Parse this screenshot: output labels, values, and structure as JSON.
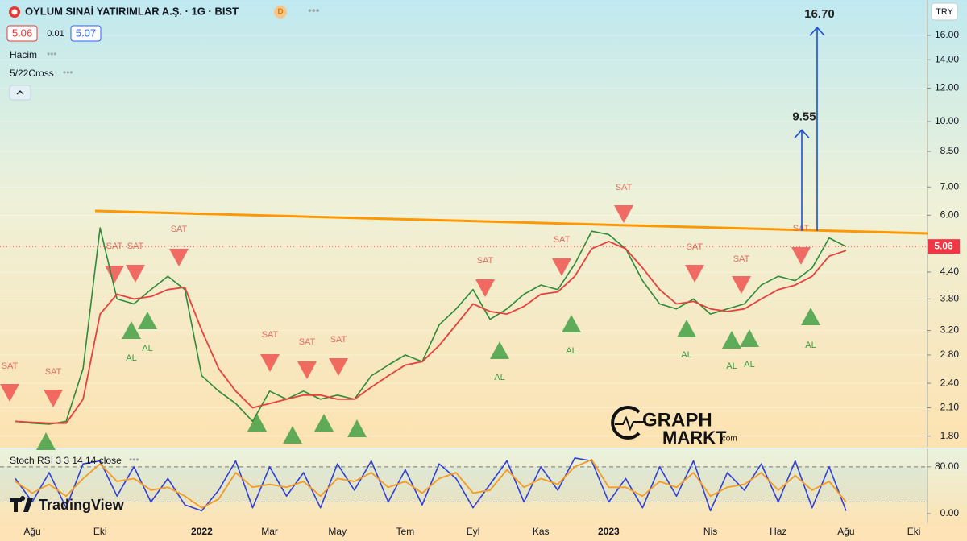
{
  "header": {
    "bid": 5.06,
    "change": 0.01,
    "ask": 5.07,
    "badge": "D",
    "indicators": [
      "Hacim",
      "5/22Cross"
    ],
    "currency": "TRY"
  },
  "watermark": {
    "brand": "TradingView",
    "line1": "GRAPH",
    "line2": "MARKT",
    "suffix": ".com"
  },
  "chart_data": [
    {
      "type": "line",
      "title": "OYLUM SINAİ YATIRIMLAR A.Ş. · 1G · BIST",
      "categories": [
        null,
        "Ağu",
        null,
        null,
        null,
        "Eki",
        null,
        null,
        null,
        null,
        null,
        "2022",
        null,
        null,
        null,
        "Mar",
        null,
        null,
        null,
        "May",
        null,
        null,
        null,
        "Tem",
        null,
        null,
        null,
        "Eyl",
        null,
        null,
        null,
        "Kas",
        null,
        null,
        null,
        "2023",
        null,
        null,
        null,
        null,
        null,
        "Nis",
        null,
        null,
        null,
        "Haz",
        null,
        null,
        null,
        "Ağu",
        null,
        null,
        null,
        "Eki"
      ],
      "series": [
        {
          "color": "#2e8b3a",
          "values": [
            1.95,
            1.93,
            1.92,
            1.95,
            2.6,
            5.6,
            3.8,
            3.7,
            4.0,
            4.3,
            4.0,
            2.5,
            2.3,
            2.15,
            1.95,
            2.3,
            2.2,
            2.3,
            2.2,
            2.25,
            2.2,
            2.5,
            2.65,
            2.8,
            2.7,
            3.3,
            3.6,
            4.0,
            3.4,
            3.6,
            3.9,
            4.1,
            4.0,
            4.6,
            5.5,
            5.4,
            5.0,
            4.2,
            3.7,
            3.6,
            3.8,
            3.5,
            3.6,
            3.7,
            4.1,
            4.3,
            4.2,
            4.5,
            5.3,
            5.06,
            null,
            null,
            null,
            null
          ]
        },
        {
          "color": "#e8413c",
          "values": [
            1.95,
            1.94,
            1.93,
            1.93,
            2.2,
            3.5,
            3.9,
            3.8,
            3.85,
            4.0,
            4.05,
            3.2,
            2.6,
            2.3,
            2.1,
            2.15,
            2.2,
            2.25,
            2.25,
            2.2,
            2.2,
            2.35,
            2.5,
            2.65,
            2.7,
            2.95,
            3.3,
            3.7,
            3.55,
            3.5,
            3.65,
            3.9,
            3.95,
            4.3,
            5.0,
            5.2,
            5.0,
            4.5,
            4.0,
            3.7,
            3.75,
            3.6,
            3.55,
            3.6,
            3.8,
            4.0,
            4.1,
            4.3,
            4.8,
            4.95,
            null,
            null,
            null,
            null
          ]
        }
      ],
      "log_scale": true,
      "ylim": [
        1.69,
        19.4
      ],
      "yticks": [
        {
          "value": 1.8,
          "label": "1.80"
        },
        {
          "value": 2.1,
          "label": "2.10"
        },
        {
          "value": 2.4,
          "label": "2.40"
        },
        {
          "value": 2.8,
          "label": "2.80"
        },
        {
          "value": 3.2,
          "label": "3.20"
        },
        {
          "value": 3.8,
          "label": "3.80"
        },
        {
          "value": 4.4,
          "label": "4.40"
        },
        {
          "value": 6,
          "label": "6.00"
        },
        {
          "value": 7,
          "label": "7.00"
        },
        {
          "value": 8.5,
          "label": "8.50"
        },
        {
          "value": 10,
          "label": "10.00"
        },
        {
          "value": 12,
          "label": "12.00"
        },
        {
          "value": 14,
          "label": "14.00"
        },
        {
          "value": 16,
          "label": "16.00"
        }
      ],
      "last_price": 5.06,
      "targets": [
        9.55,
        16.7
      ],
      "target_labels": [
        "9.55",
        "16.70"
      ],
      "sell_label": "SAT",
      "buy_label": "AL",
      "trendline_color": "#ff9800",
      "target_color": "#1f4fd6"
    },
    {
      "type": "line",
      "title": "Stoch RSI 3 3 14 14 close",
      "series": [
        {
          "color": "#2f3fdb",
          "values": [
            60,
            20,
            70,
            10,
            85,
            90,
            30,
            80,
            20,
            60,
            15,
            5,
            40,
            90,
            10,
            80,
            30,
            70,
            10,
            85,
            40,
            90,
            20,
            75,
            15,
            85,
            60,
            10,
            50,
            90,
            20,
            80,
            40,
            95,
            90,
            20,
            60,
            10,
            80,
            30,
            90,
            5,
            70,
            40,
            85,
            20,
            90,
            10,
            80,
            5,
            null,
            null,
            null,
            null
          ]
        },
        {
          "color": "#f59a23",
          "values": [
            55,
            35,
            50,
            30,
            60,
            85,
            55,
            60,
            40,
            45,
            30,
            10,
            25,
            70,
            45,
            50,
            45,
            55,
            30,
            60,
            55,
            70,
            45,
            55,
            35,
            60,
            70,
            35,
            40,
            75,
            45,
            60,
            50,
            80,
            92,
            45,
            45,
            30,
            55,
            45,
            70,
            30,
            45,
            50,
            70,
            40,
            65,
            40,
            55,
            20,
            null,
            null,
            null,
            null
          ]
        }
      ],
      "ylim": [
        -16.5,
        110
      ],
      "yticks": [
        {
          "value": 80,
          "label": "80.00"
        },
        {
          "value": 0,
          "label": "0.00"
        }
      ],
      "band": [
        20,
        80
      ]
    }
  ]
}
